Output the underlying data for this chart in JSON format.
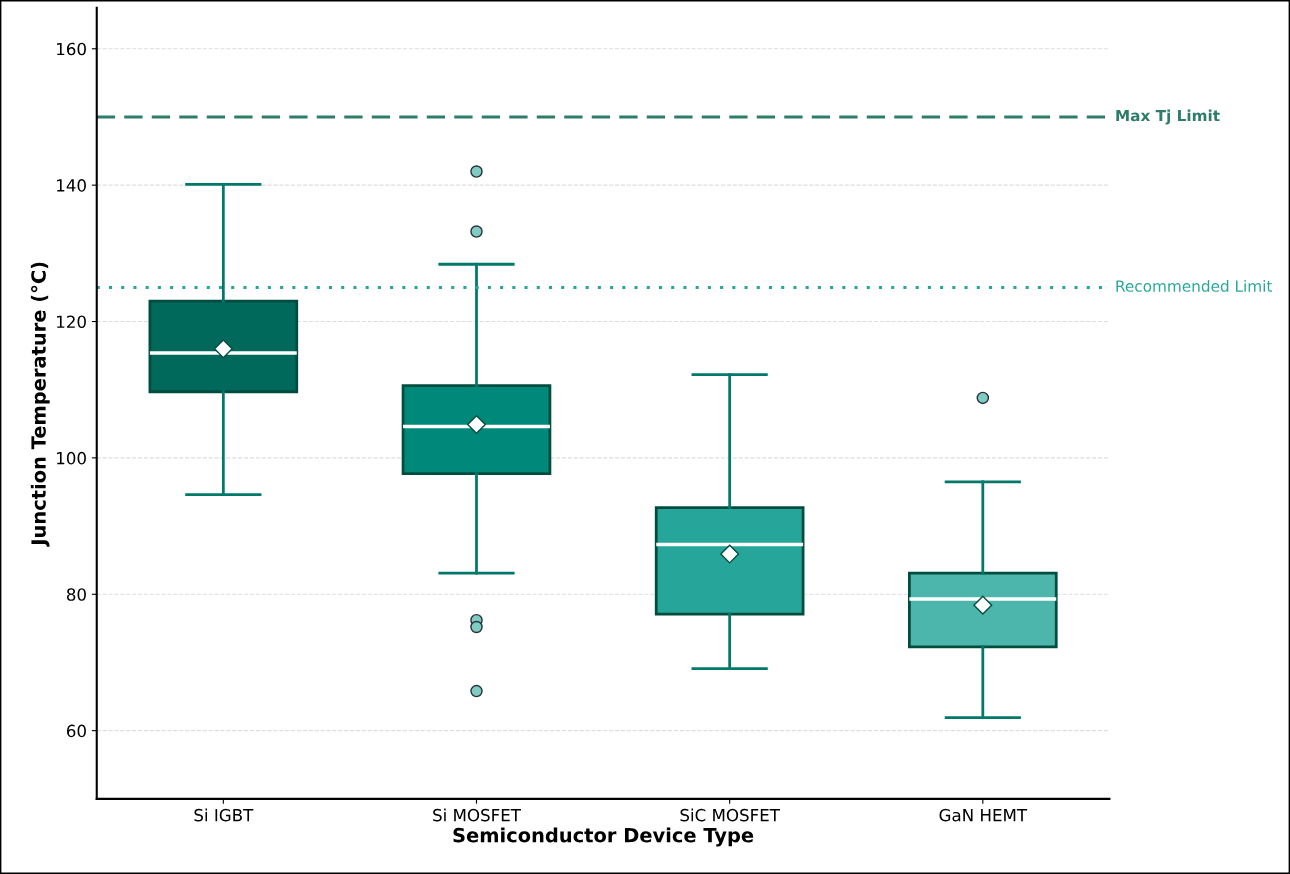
{
  "chart_data": {
    "type": "box",
    "xlabel": "Semiconductor Device Type",
    "ylabel": "Junction Temperature (°C)",
    "categories": [
      "Si IGBT",
      "Si MOSFET",
      "SiC MOSFET",
      "GaN HEMT"
    ],
    "colors": [
      "#00695c",
      "#00897b",
      "#26a69a",
      "#4db6ac"
    ],
    "boxes": [
      {
        "low": 94.6,
        "q1": 109.7,
        "median": 115.4,
        "q3": 123.0,
        "high": 140.1,
        "mean": 116.0
      },
      {
        "low": 83.1,
        "q1": 97.7,
        "median": 104.6,
        "q3": 110.6,
        "high": 128.4,
        "mean": 104.9,
        "outliers": [
          142.0,
          133.2,
          76.2,
          75.2,
          65.8
        ]
      },
      {
        "low": 69.1,
        "q1": 77.1,
        "median": 87.3,
        "q3": 92.7,
        "high": 112.2,
        "mean": 85.9
      },
      {
        "low": 61.9,
        "q1": 72.3,
        "median": 79.3,
        "q3": 83.1,
        "high": 96.5,
        "mean": 78.4,
        "outliers": [
          108.8
        ]
      }
    ],
    "ylim": [
      50,
      166
    ],
    "yticks": [
      60,
      80,
      100,
      120,
      140,
      160
    ],
    "grid": "y",
    "ref_lines": [
      {
        "axis": "y",
        "value": 150,
        "label": "Max Tj Limit",
        "color": "#2e7d6b",
        "line_style": "dashed"
      },
      {
        "axis": "y",
        "value": 125,
        "label": "Recommended Limit",
        "color": "#26a69a",
        "line_style": "dotted"
      }
    ]
  }
}
